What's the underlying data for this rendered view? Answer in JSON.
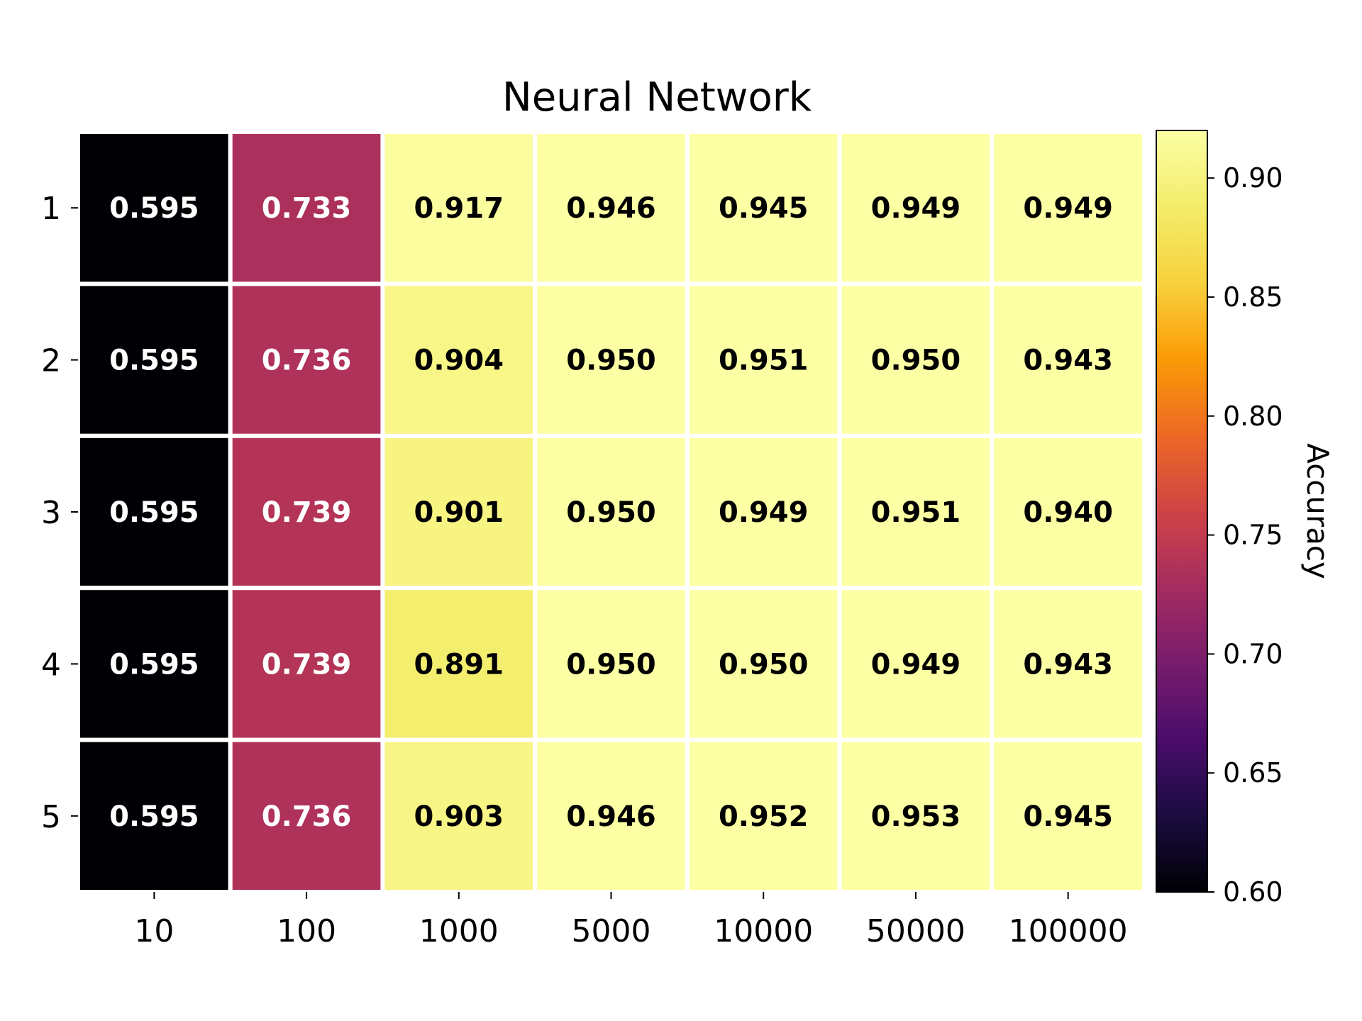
{
  "chart_data": {
    "type": "heatmap",
    "title": "Neural Network",
    "x_categories": [
      "10",
      "100",
      "1000",
      "5000",
      "10000",
      "50000",
      "100000"
    ],
    "y_categories": [
      "1",
      "2",
      "3",
      "4",
      "5"
    ],
    "values": [
      [
        0.595,
        0.733,
        0.917,
        0.946,
        0.945,
        0.949,
        0.949
      ],
      [
        0.595,
        0.736,
        0.904,
        0.95,
        0.951,
        0.95,
        0.943
      ],
      [
        0.595,
        0.739,
        0.901,
        0.95,
        0.949,
        0.951,
        0.94
      ],
      [
        0.595,
        0.739,
        0.891,
        0.95,
        0.95,
        0.949,
        0.943
      ],
      [
        0.595,
        0.736,
        0.903,
        0.946,
        0.952,
        0.953,
        0.945
      ]
    ],
    "colorbar": {
      "label": "Accuracy",
      "vmin": 0.6,
      "vmax": 0.92,
      "ticks": [
        "0.60",
        "0.65",
        "0.70",
        "0.75",
        "0.80",
        "0.85",
        "0.90"
      ],
      "colormap": "inferno"
    },
    "cell_border_color": "#ffffff"
  }
}
